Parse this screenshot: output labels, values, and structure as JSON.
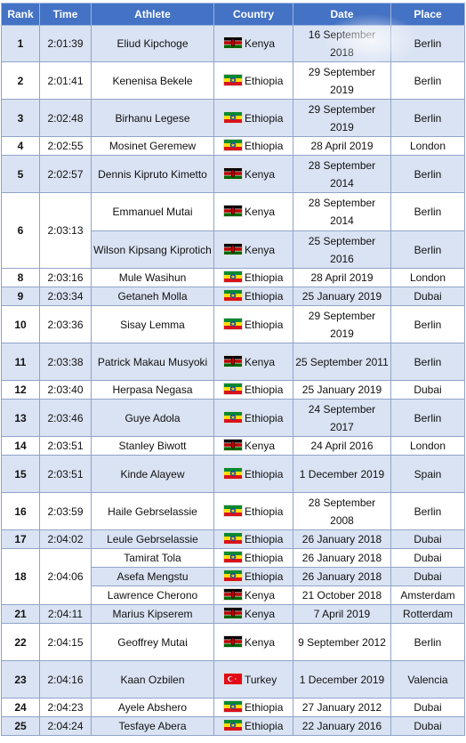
{
  "headers": [
    "Rank",
    "Time",
    "Athlete",
    "Country",
    "Date",
    "Place"
  ],
  "colors": {
    "header_bg": "#4472c4",
    "row_alt": "#dae3f3",
    "border": "#8fa4c9"
  },
  "rows": [
    {
      "rank": "1",
      "time": "2:01:39",
      "athlete": "Eliud Kipchoge",
      "country": "Kenya",
      "flag": "kenya-flag-icon",
      "date": "16 September 2018",
      "place": "Berlin"
    },
    {
      "rank": "2",
      "time": "2:01:41",
      "athlete": "Kenenisa Bekele",
      "country": "Ethiopia",
      "flag": "ethiopia-flag-icon",
      "date": "29 September 2019",
      "place": "Berlin"
    },
    {
      "rank": "3",
      "time": "2:02:48",
      "athlete": "Birhanu Legese",
      "country": "Ethiopia",
      "flag": "ethiopia-flag-icon",
      "date": "29 September 2019",
      "place": "Berlin"
    },
    {
      "rank": "4",
      "time": "2:02:55",
      "athlete": "Mosinet Geremew",
      "country": "Ethiopia",
      "flag": "ethiopia-flag-icon",
      "date": "28 April 2019",
      "place": "London"
    },
    {
      "rank": "5",
      "time": "2:02:57",
      "athlete": "Dennis Kipruto Kimetto",
      "country": "Kenya",
      "flag": "kenya-flag-icon",
      "date": "28 September 2014",
      "place": "Berlin"
    },
    {
      "rank": "6",
      "time": "2:03:13",
      "athlete": "Emmanuel Mutai",
      "country": "Kenya",
      "flag": "kenya-flag-icon",
      "date": "28 September 2014",
      "place": "Berlin"
    },
    {
      "rank": "",
      "time": "",
      "athlete": "Wilson Kipsang Kiprotich",
      "country": "Kenya",
      "flag": "kenya-flag-icon",
      "date": "25 September 2016",
      "place": "Berlin"
    },
    {
      "rank": "8",
      "time": "2:03:16",
      "athlete": "Mule Wasihun",
      "country": "Ethiopia",
      "flag": "ethiopia-flag-icon",
      "date": "28 April 2019",
      "place": "London"
    },
    {
      "rank": "9",
      "time": "2:03:34",
      "athlete": "Getaneh Molla",
      "country": "Ethiopia",
      "flag": "ethiopia-flag-icon",
      "date": "25 January 2019",
      "place": "Dubai"
    },
    {
      "rank": "10",
      "time": "2:03:36",
      "athlete": "Sisay Lemma",
      "country": "Ethiopia",
      "flag": "ethiopia-flag-icon",
      "date": "29 September 2019",
      "place": "Berlin"
    },
    {
      "rank": "11",
      "time": "2:03:38",
      "athlete": "Patrick Makau Musyoki",
      "country": "Kenya",
      "flag": "kenya-flag-icon",
      "date": "25 September 2011",
      "place": "Berlin"
    },
    {
      "rank": "12",
      "time": "2:03:40",
      "athlete": "Herpasa Negasa",
      "country": "Ethiopia",
      "flag": "ethiopia-flag-icon",
      "date": "25 January 2019",
      "place": "Dubai"
    },
    {
      "rank": "13",
      "time": "2:03:46",
      "athlete": "Guye Adola",
      "country": "Ethiopia",
      "flag": "ethiopia-flag-icon",
      "date": "24 September 2017",
      "place": "Berlin"
    },
    {
      "rank": "14",
      "time": "2:03:51",
      "athlete": "Stanley Biwott",
      "country": "Kenya",
      "flag": "kenya-flag-icon",
      "date": "24 April 2016",
      "place": "London"
    },
    {
      "rank": "15",
      "time": "2:03:51",
      "athlete": "Kinde Alayew",
      "country": "Ethiopia",
      "flag": "ethiopia-flag-icon",
      "date": "1 December 2019",
      "place": "Spain"
    },
    {
      "rank": "16",
      "time": "2:03:59",
      "athlete": "Haile Gebrselassie",
      "country": "Ethiopia",
      "flag": "ethiopia-flag-icon",
      "date": "28 September 2008",
      "place": "Berlin"
    },
    {
      "rank": "17",
      "time": "2:04:02",
      "athlete": "Leule Gebrselassie",
      "country": "Ethiopia",
      "flag": "ethiopia-flag-icon",
      "date": "26 January 2018",
      "place": "Dubai"
    },
    {
      "rank": "18",
      "time": "2:04:06",
      "athlete": "Tamirat Tola",
      "country": "Ethiopia",
      "flag": "ethiopia-flag-icon",
      "date": "26 January 2018",
      "place": "Dubai"
    },
    {
      "rank": "",
      "time": "",
      "athlete": "Asefa Mengstu",
      "country": "Ethiopia",
      "flag": "ethiopia-flag-icon",
      "date": "26 January 2018",
      "place": "Dubai"
    },
    {
      "rank": "",
      "time": "",
      "athlete": "Lawrence Cherono",
      "country": "Kenya",
      "flag": "kenya-flag-icon",
      "date": "21 October 2018",
      "place": "Amsterdam"
    },
    {
      "rank": "21",
      "time": "2:04:11",
      "athlete": "Marius Kipserem",
      "country": "Kenya",
      "flag": "kenya-flag-icon",
      "date": "7 April 2019",
      "place": "Rotterdam"
    },
    {
      "rank": "22",
      "time": "2:04:15",
      "athlete": "Geoffrey Mutai",
      "country": "Kenya",
      "flag": "kenya-flag-icon",
      "date": "9 September 2012",
      "place": "Berlin"
    },
    {
      "rank": "23",
      "time": "2:04:16",
      "athlete": "Kaan Ozbilen",
      "country": "Turkey",
      "flag": "turkey-flag-icon",
      "date": "1 December 2019",
      "place": "Valencia"
    },
    {
      "rank": "24",
      "time": "2:04:23",
      "athlete": "Ayele Abshero",
      "country": "Ethiopia",
      "flag": "ethiopia-flag-icon",
      "date": "27 January 2012",
      "place": "Dubai"
    },
    {
      "rank": "25",
      "time": "2:04:24",
      "athlete": "Tesfaye Abera",
      "country": "Ethiopia",
      "flag": "ethiopia-flag-icon",
      "date": "22 January 2016",
      "place": "Dubai"
    }
  ]
}
